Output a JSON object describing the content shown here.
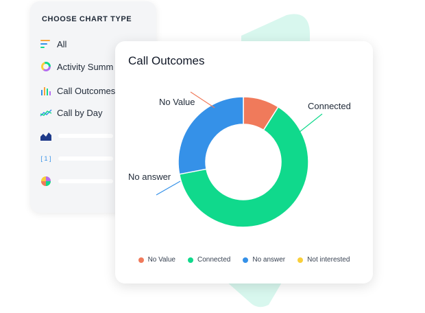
{
  "sidebar": {
    "title": "CHOOSE CHART TYPE",
    "items": [
      {
        "label": "All",
        "icon": "bars-icon"
      },
      {
        "label": "Activity Summ",
        "icon": "donut-icon"
      },
      {
        "label": "Call Outcomes",
        "icon": "column-chart-icon"
      },
      {
        "label": "Call by Day",
        "icon": "line-chart-icon"
      },
      {
        "label": "",
        "icon": "area-chart-icon"
      },
      {
        "label": "",
        "icon": "number-icon",
        "glyph": "[ 1 ]"
      },
      {
        "label": "",
        "icon": "pie-icon"
      }
    ]
  },
  "card": {
    "title": "Call Outcomes"
  },
  "colors": {
    "no_value": "#f07a5b",
    "connected": "#10d98c",
    "no_answer": "#3591e8",
    "not_interested": "#f9cf3a",
    "accent_bg": "#d8f7ee"
  },
  "chart_data": {
    "type": "pie",
    "categories": [
      "No Value",
      "Connected",
      "No answer",
      "Not interested"
    ],
    "values": [
      9,
      63,
      28,
      0
    ],
    "labels": [
      "No Value",
      "Connected",
      "No answer"
    ],
    "legend": [
      "No Value",
      "Connected",
      "No answer",
      "Not interested"
    ],
    "legend_placement": "bottom"
  }
}
